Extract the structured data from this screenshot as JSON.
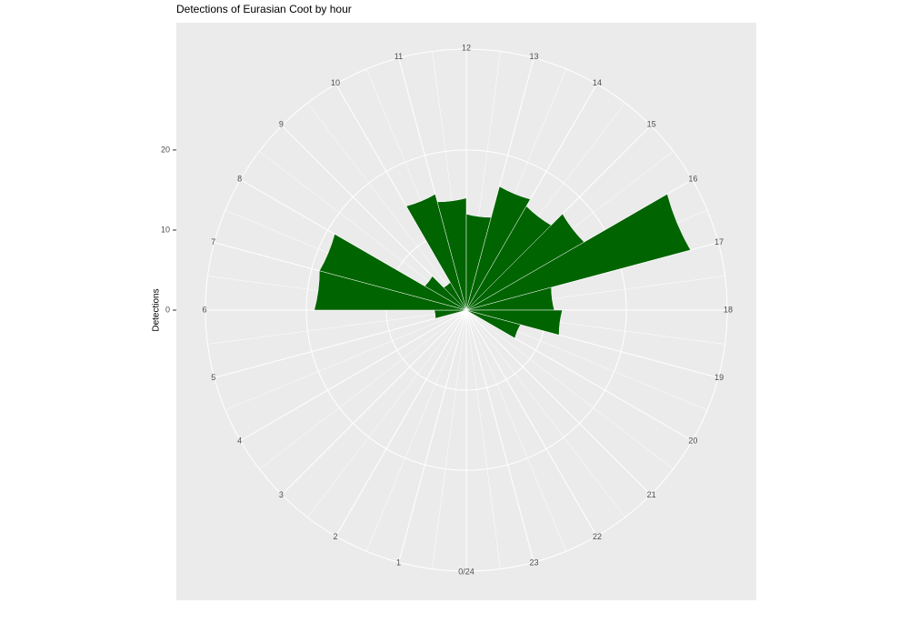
{
  "chart_data": {
    "type": "polar-bar",
    "title": "Detections of Eurasian Coot by hour",
    "y_label": "Detections",
    "categories": [
      "0/24",
      "1",
      "2",
      "3",
      "4",
      "5",
      "6",
      "7",
      "8",
      "9",
      "10",
      "11",
      "12",
      "13",
      "14",
      "15",
      "16",
      "17",
      "18",
      "19",
      "20",
      "21",
      "22",
      "23"
    ],
    "values": [
      0,
      0,
      0,
      0,
      0,
      4,
      19,
      19,
      6,
      4,
      15,
      14,
      12,
      16,
      15,
      17,
      29,
      11,
      12,
      7,
      0,
      0,
      0,
      0
    ],
    "color": "#006400",
    "ylim": [
      0,
      32.6
    ],
    "yticks": [
      0,
      10,
      20
    ],
    "grid": true
  }
}
